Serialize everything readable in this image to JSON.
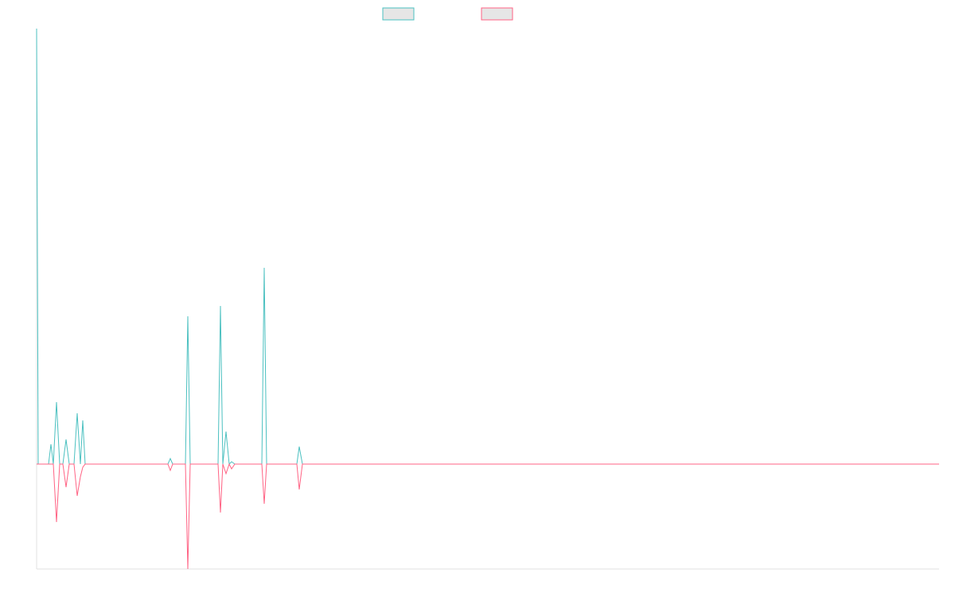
{
  "chart_data": {
    "type": "line",
    "x": [
      0,
      2,
      15,
      18,
      21,
      25,
      29,
      33,
      37,
      41,
      47,
      51,
      55,
      58,
      61,
      165,
      168,
      171,
      187,
      190,
      193,
      228,
      231,
      234,
      238,
      242,
      245,
      249,
      283,
      286,
      289,
      327,
      330,
      334,
      1134
    ],
    "series": [
      {
        "color": "#4bc0c0",
        "values": [
          548,
          0,
          0,
          25,
          0,
          78,
          0,
          0,
          31,
          0,
          0,
          64,
          0,
          55,
          0,
          0,
          7,
          0,
          0,
          186,
          0,
          0,
          199,
          0,
          41,
          0,
          3,
          0,
          0,
          247,
          0,
          0,
          22,
          0,
          0
        ]
      },
      {
        "color": "#ff6384",
        "values": [
          0,
          0,
          0,
          0,
          0,
          -73,
          0,
          0,
          -29,
          0,
          0,
          -40,
          -16,
          -4,
          0,
          0,
          -8,
          0,
          0,
          -132,
          0,
          0,
          -61,
          0,
          -12,
          0,
          -6,
          0,
          0,
          -50,
          0,
          0,
          -32,
          0,
          0
        ]
      }
    ],
    "xlim": [
      0,
      1134
    ],
    "ylim": [
      -132,
      548
    ]
  }
}
